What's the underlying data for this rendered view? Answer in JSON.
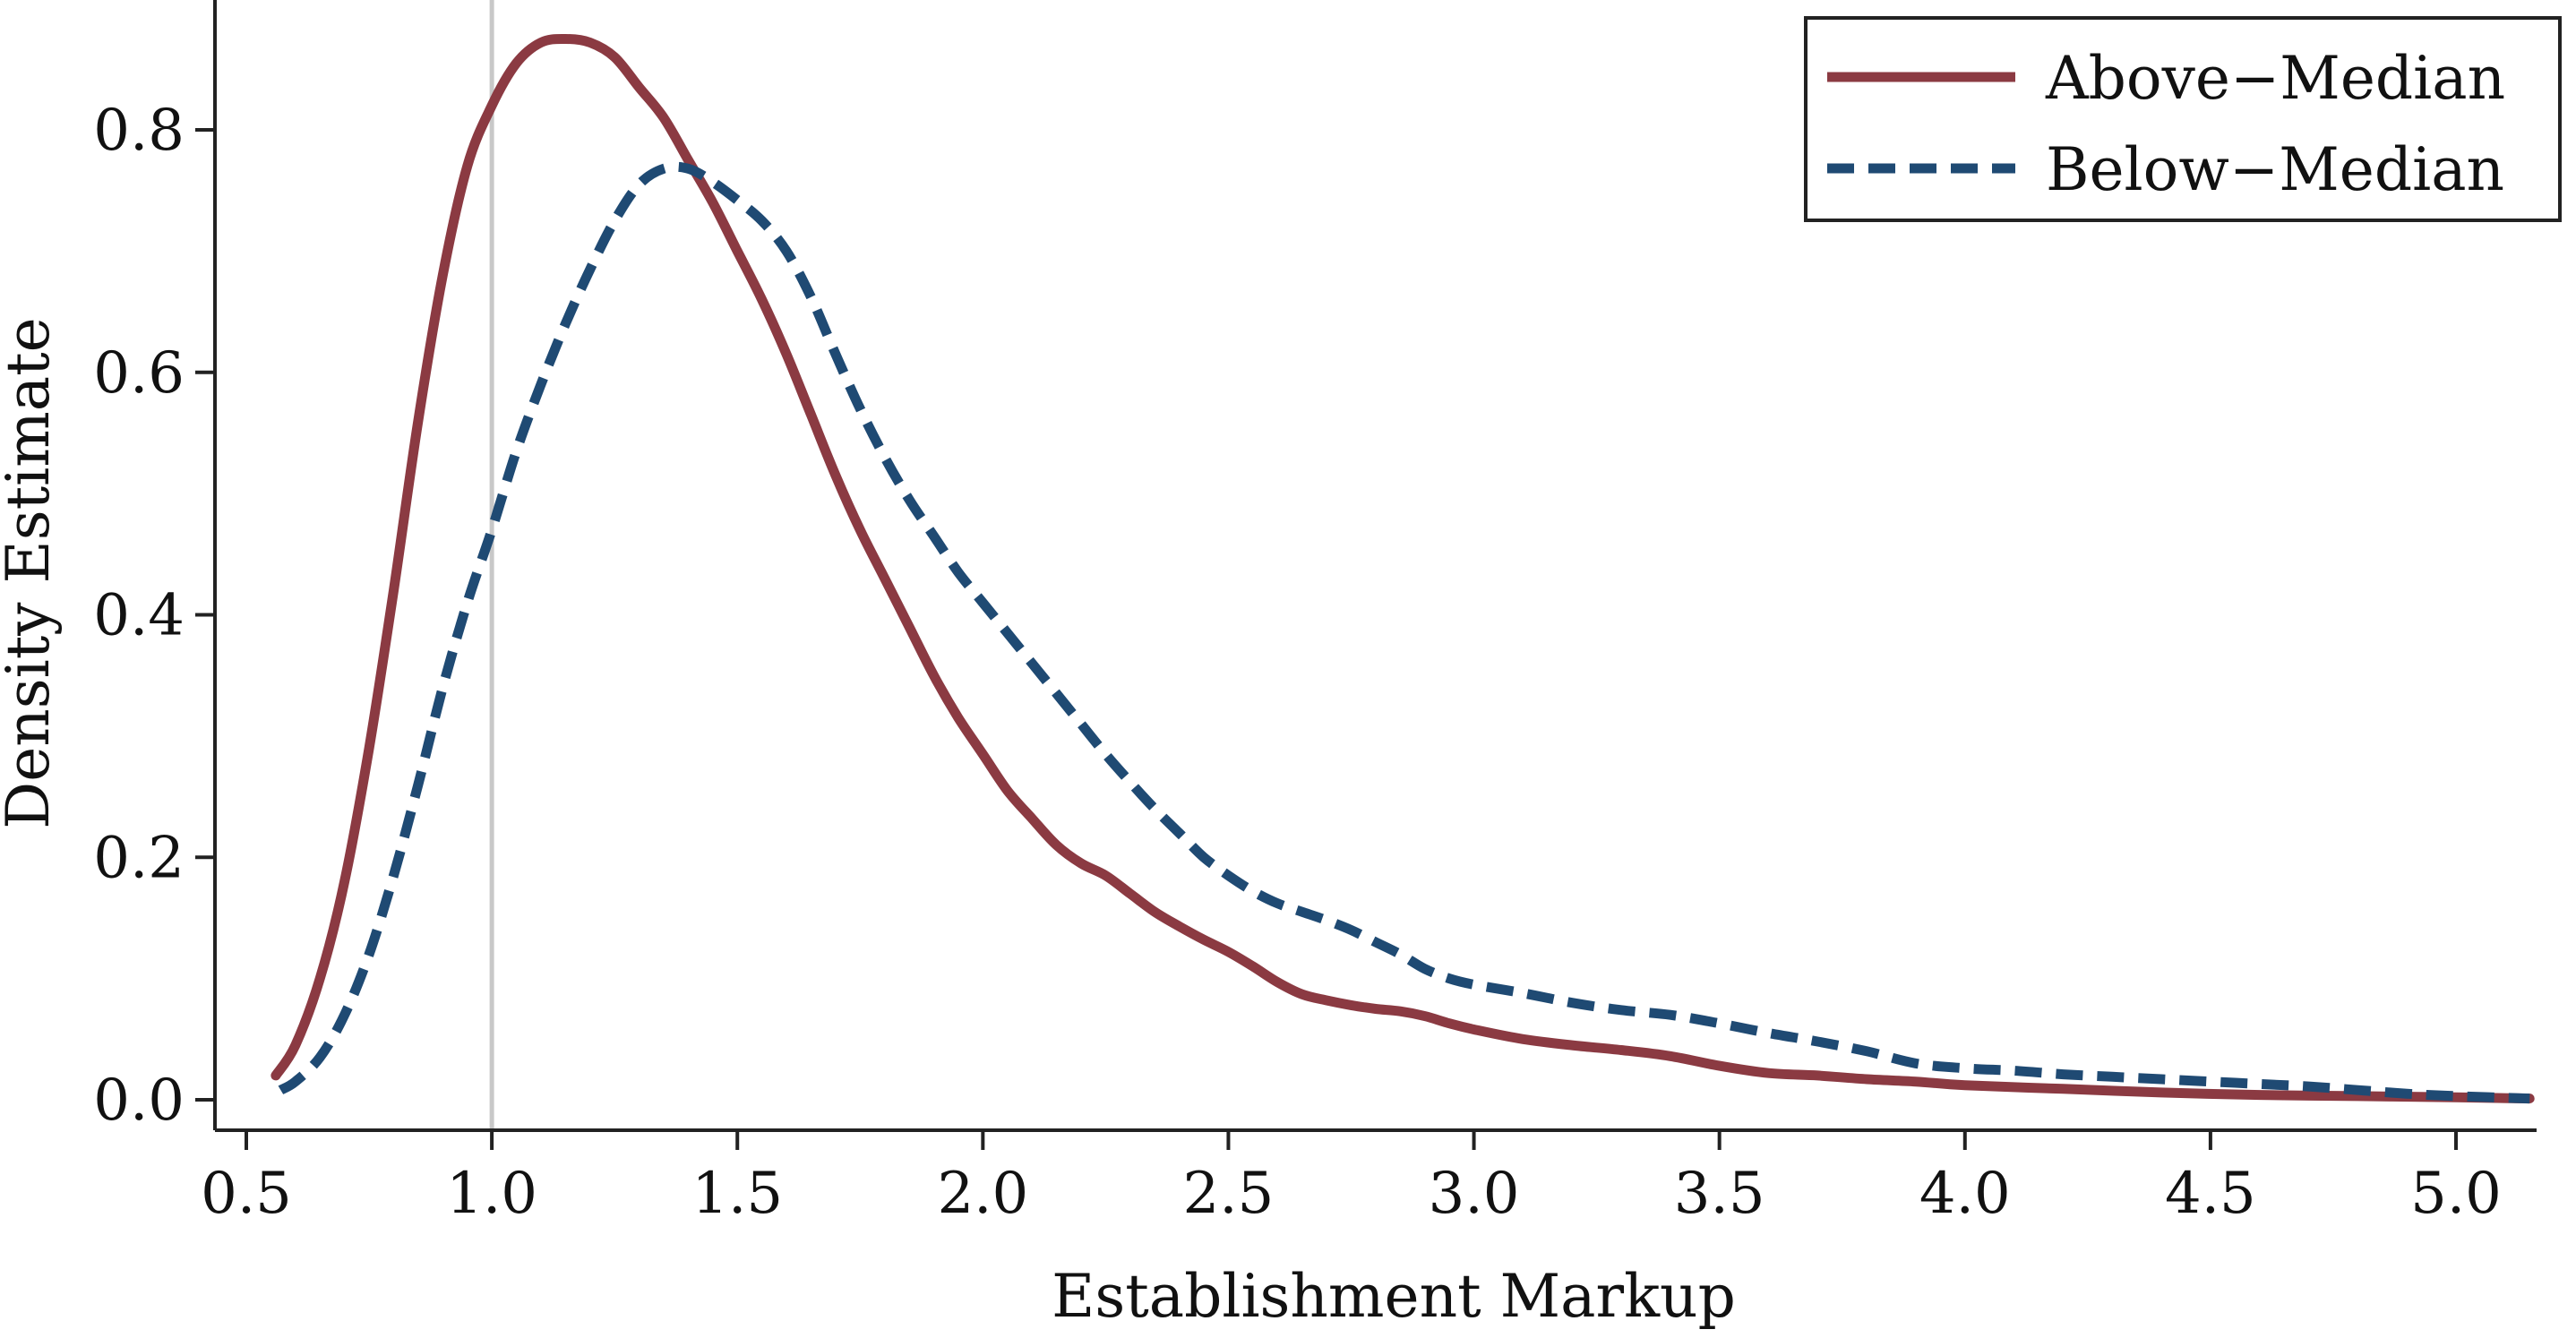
{
  "chart_data": {
    "type": "line",
    "title": "",
    "xlabel": "Establishment Markup",
    "ylabel": "Density Estimate",
    "xlim": [
      0.45,
      5.25
    ],
    "ylim": [
      -0.025,
      0.9
    ],
    "xticks": [
      0.5,
      1.0,
      1.5,
      2.0,
      2.5,
      3.0,
      3.5,
      4.0,
      4.5,
      5.0
    ],
    "xtick_labels": [
      "0.5",
      "1.0",
      "1.5",
      "2.0",
      "2.5",
      "3.0",
      "3.5",
      "4.0",
      "4.5",
      "5.0"
    ],
    "yticks": [
      0.0,
      0.2,
      0.4,
      0.6,
      0.8
    ],
    "ytick_labels": [
      "0.0",
      "0.2",
      "0.4",
      "0.6",
      "0.8"
    ],
    "grid": false,
    "legend_position": "top-right",
    "reference_line": {
      "x": 1.0,
      "color": "#c8c8c8"
    },
    "series": [
      {
        "name": "Above−Median",
        "color": "#8b3a42",
        "style": "solid",
        "points": [
          [
            0.56,
            0.02
          ],
          [
            0.6,
            0.045
          ],
          [
            0.65,
            0.1
          ],
          [
            0.7,
            0.18
          ],
          [
            0.75,
            0.29
          ],
          [
            0.8,
            0.42
          ],
          [
            0.85,
            0.56
          ],
          [
            0.9,
            0.68
          ],
          [
            0.95,
            0.77
          ],
          [
            1.0,
            0.82
          ],
          [
            1.05,
            0.855
          ],
          [
            1.1,
            0.872
          ],
          [
            1.15,
            0.875
          ],
          [
            1.2,
            0.872
          ],
          [
            1.25,
            0.86
          ],
          [
            1.3,
            0.835
          ],
          [
            1.35,
            0.81
          ],
          [
            1.4,
            0.775
          ],
          [
            1.45,
            0.74
          ],
          [
            1.5,
            0.7
          ],
          [
            1.55,
            0.66
          ],
          [
            1.6,
            0.615
          ],
          [
            1.65,
            0.565
          ],
          [
            1.7,
            0.515
          ],
          [
            1.75,
            0.47
          ],
          [
            1.8,
            0.43
          ],
          [
            1.85,
            0.39
          ],
          [
            1.9,
            0.35
          ],
          [
            1.95,
            0.315
          ],
          [
            2.0,
            0.285
          ],
          [
            2.05,
            0.255
          ],
          [
            2.1,
            0.232
          ],
          [
            2.15,
            0.21
          ],
          [
            2.2,
            0.195
          ],
          [
            2.25,
            0.185
          ],
          [
            2.3,
            0.17
          ],
          [
            2.35,
            0.155
          ],
          [
            2.4,
            0.143
          ],
          [
            2.45,
            0.132
          ],
          [
            2.5,
            0.122
          ],
          [
            2.55,
            0.11
          ],
          [
            2.6,
            0.097
          ],
          [
            2.65,
            0.087
          ],
          [
            2.7,
            0.082
          ],
          [
            2.75,
            0.078
          ],
          [
            2.8,
            0.075
          ],
          [
            2.85,
            0.073
          ],
          [
            2.9,
            0.069
          ],
          [
            2.95,
            0.063
          ],
          [
            3.0,
            0.058
          ],
          [
            3.1,
            0.05
          ],
          [
            3.2,
            0.045
          ],
          [
            3.3,
            0.041
          ],
          [
            3.4,
            0.036
          ],
          [
            3.5,
            0.028
          ],
          [
            3.6,
            0.022
          ],
          [
            3.7,
            0.02
          ],
          [
            3.8,
            0.017
          ],
          [
            3.9,
            0.015
          ],
          [
            4.0,
            0.012
          ],
          [
            4.2,
            0.009
          ],
          [
            4.4,
            0.006
          ],
          [
            4.6,
            0.004
          ],
          [
            4.8,
            0.003
          ],
          [
            5.0,
            0.002
          ],
          [
            5.15,
            0.001
          ]
        ]
      },
      {
        "name": "Below−Median",
        "color": "#1f4a73",
        "style": "dashed",
        "points": [
          [
            0.57,
            0.008
          ],
          [
            0.6,
            0.015
          ],
          [
            0.65,
            0.035
          ],
          [
            0.7,
            0.07
          ],
          [
            0.75,
            0.12
          ],
          [
            0.8,
            0.185
          ],
          [
            0.85,
            0.26
          ],
          [
            0.9,
            0.34
          ],
          [
            0.95,
            0.41
          ],
          [
            1.0,
            0.47
          ],
          [
            1.05,
            0.535
          ],
          [
            1.1,
            0.59
          ],
          [
            1.15,
            0.64
          ],
          [
            1.2,
            0.685
          ],
          [
            1.25,
            0.725
          ],
          [
            1.3,
            0.755
          ],
          [
            1.35,
            0.768
          ],
          [
            1.4,
            0.768
          ],
          [
            1.45,
            0.757
          ],
          [
            1.5,
            0.742
          ],
          [
            1.55,
            0.725
          ],
          [
            1.6,
            0.7
          ],
          [
            1.65,
            0.662
          ],
          [
            1.7,
            0.615
          ],
          [
            1.75,
            0.57
          ],
          [
            1.8,
            0.53
          ],
          [
            1.85,
            0.495
          ],
          [
            1.9,
            0.465
          ],
          [
            1.95,
            0.435
          ],
          [
            2.0,
            0.41
          ],
          [
            2.05,
            0.385
          ],
          [
            2.1,
            0.36
          ],
          [
            2.15,
            0.335
          ],
          [
            2.2,
            0.31
          ],
          [
            2.25,
            0.285
          ],
          [
            2.3,
            0.262
          ],
          [
            2.35,
            0.24
          ],
          [
            2.4,
            0.22
          ],
          [
            2.45,
            0.2
          ],
          [
            2.5,
            0.185
          ],
          [
            2.55,
            0.172
          ],
          [
            2.6,
            0.162
          ],
          [
            2.65,
            0.155
          ],
          [
            2.7,
            0.148
          ],
          [
            2.75,
            0.14
          ],
          [
            2.8,
            0.13
          ],
          [
            2.85,
            0.12
          ],
          [
            2.9,
            0.108
          ],
          [
            2.95,
            0.1
          ],
          [
            3.0,
            0.095
          ],
          [
            3.1,
            0.088
          ],
          [
            3.2,
            0.08
          ],
          [
            3.3,
            0.074
          ],
          [
            3.4,
            0.07
          ],
          [
            3.5,
            0.063
          ],
          [
            3.6,
            0.055
          ],
          [
            3.7,
            0.048
          ],
          [
            3.8,
            0.04
          ],
          [
            3.9,
            0.03
          ],
          [
            4.0,
            0.026
          ],
          [
            4.1,
            0.024
          ],
          [
            4.2,
            0.021
          ],
          [
            4.3,
            0.019
          ],
          [
            4.4,
            0.017
          ],
          [
            4.5,
            0.015
          ],
          [
            4.6,
            0.013
          ],
          [
            4.7,
            0.011
          ],
          [
            4.8,
            0.008
          ],
          [
            4.9,
            0.005
          ],
          [
            5.0,
            0.003
          ],
          [
            5.15,
            0.001
          ]
        ]
      }
    ]
  }
}
